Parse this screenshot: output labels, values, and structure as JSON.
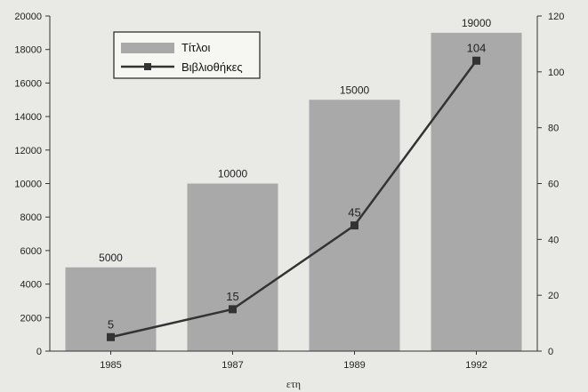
{
  "chart_data": {
    "type": "bar",
    "categories": [
      "1985",
      "1987",
      "1989",
      "1992"
    ],
    "series": [
      {
        "name": "Τίτλοι",
        "type": "bar",
        "axis": "left",
        "values": [
          5000,
          10000,
          15000,
          19000
        ],
        "color": "#a9a9a9"
      },
      {
        "name": "Βιβλιοθήκες",
        "type": "line",
        "axis": "right",
        "values": [
          5,
          15,
          45,
          104
        ],
        "color": "#333333",
        "marker": "square"
      }
    ],
    "xlabel": "ετη",
    "y_left": {
      "lim": [
        0,
        20000
      ],
      "ticks": [
        0,
        2000,
        4000,
        6000,
        8000,
        10000,
        12000,
        14000,
        16000,
        18000,
        20000
      ]
    },
    "y_right": {
      "lim": [
        0,
        120
      ],
      "ticks": [
        0,
        20,
        40,
        60,
        80,
        100,
        120
      ]
    },
    "legend": {
      "placement": "top-left"
    },
    "grid": false
  }
}
